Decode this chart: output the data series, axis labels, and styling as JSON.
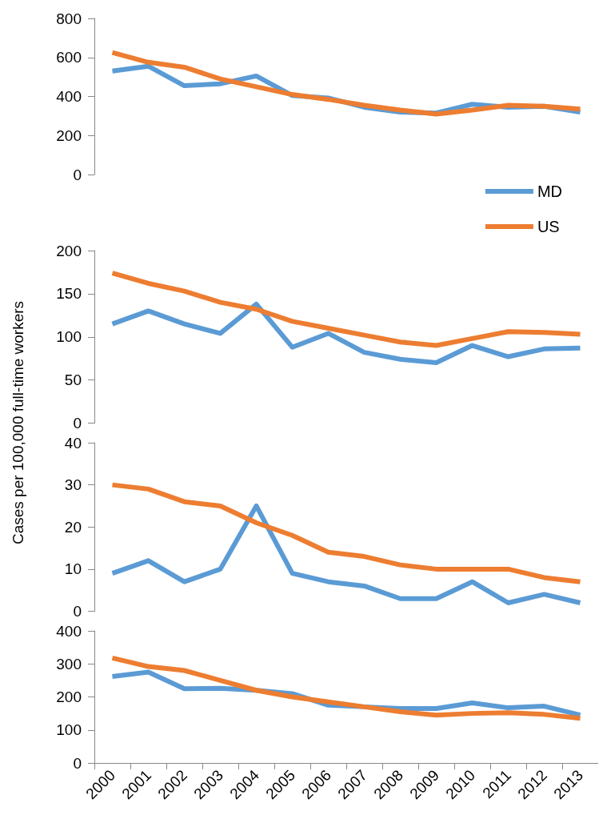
{
  "chart_data": [
    {
      "type": "line",
      "categories": [
        "2000",
        "2001",
        "2002",
        "2003",
        "2004",
        "2005",
        "2006",
        "2007",
        "2008",
        "2009",
        "2010",
        "2011",
        "2012",
        "2013"
      ],
      "series": [
        {
          "name": "MD",
          "color": "#5b9bd5",
          "values": [
            530,
            555,
            455,
            465,
            505,
            405,
            392,
            345,
            320,
            315,
            360,
            345,
            350,
            320
          ]
        },
        {
          "name": "US",
          "color": "#ed7d31",
          "values": [
            625,
            575,
            550,
            490,
            450,
            410,
            385,
            355,
            330,
            310,
            330,
            355,
            350,
            335
          ]
        }
      ],
      "ylim": [
        0,
        800
      ],
      "yticks": [
        0,
        200,
        400,
        600,
        800
      ],
      "tick_labels": "y",
      "legend": "bottom right",
      "grid": false,
      "marker": "none",
      "line_style": "solid"
    },
    {
      "type": "line",
      "categories": [
        "2000",
        "2001",
        "2002",
        "2003",
        "2004",
        "2005",
        "2006",
        "2007",
        "2008",
        "2009",
        "2010",
        "2011",
        "2012",
        "2013"
      ],
      "series": [
        {
          "color": "#5b9bd5",
          "values": [
            115,
            130,
            115,
            104,
            138,
            88,
            104,
            82,
            74,
            70,
            90,
            77,
            86,
            87
          ]
        },
        {
          "color": "#ed7d31",
          "values": [
            174,
            162,
            153,
            140,
            132,
            118,
            110,
            102,
            94,
            90,
            98,
            106,
            105,
            103
          ]
        }
      ],
      "ylim": [
        0,
        200
      ],
      "yticks": [
        0,
        50,
        100,
        150,
        200
      ],
      "tick_labels": "y",
      "grid": false,
      "marker": "none",
      "line_style": "solid"
    },
    {
      "type": "line",
      "ylabel": "Cases per 100,000 full-time workers",
      "categories": [
        "2000",
        "2001",
        "2002",
        "2003",
        "2004",
        "2005",
        "2006",
        "2007",
        "2008",
        "2009",
        "2010",
        "2011",
        "2012",
        "2013"
      ],
      "series": [
        {
          "color": "#5b9bd5",
          "values": [
            9,
            12,
            7,
            10,
            25,
            9,
            7,
            6,
            3,
            3,
            7,
            2,
            4,
            2
          ]
        },
        {
          "color": "#ed7d31",
          "values": [
            30,
            29,
            26,
            25,
            21,
            18,
            14,
            13,
            11,
            10,
            10,
            10,
            8,
            7
          ]
        }
      ],
      "ylim": [
        0,
        40
      ],
      "yticks": [
        0,
        10,
        20,
        30,
        40
      ],
      "tick_labels": "y",
      "grid": false,
      "marker": "none",
      "line_style": "solid"
    },
    {
      "type": "line",
      "categories": [
        "2000",
        "2001",
        "2002",
        "2003",
        "2004",
        "2005",
        "2006",
        "2007",
        "2008",
        "2009",
        "2010",
        "2011",
        "2012",
        "2013"
      ],
      "series": [
        {
          "color": "#5b9bd5",
          "values": [
            262,
            275,
            225,
            226,
            220,
            210,
            175,
            170,
            165,
            165,
            182,
            167,
            172,
            145
          ]
        },
        {
          "color": "#ed7d31",
          "values": [
            318,
            292,
            280,
            250,
            220,
            200,
            185,
            170,
            155,
            145,
            150,
            152,
            147,
            135
          ]
        }
      ],
      "ylim": [
        0,
        400
      ],
      "yticks": [
        0,
        100,
        200,
        300,
        400
      ],
      "grid": false,
      "marker": "none",
      "line_style": "solid"
    }
  ]
}
